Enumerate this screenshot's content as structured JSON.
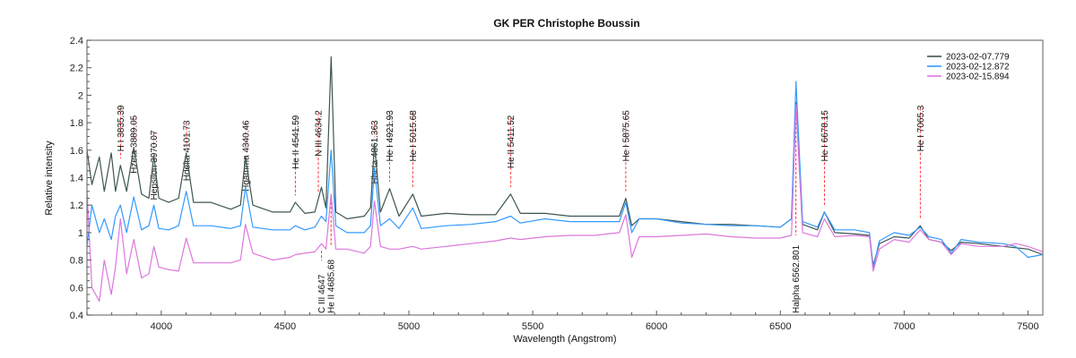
{
  "chart_data": {
    "type": "line",
    "title": "GK PER  Christophe Boussin",
    "xlabel": "Wavelength (Angstrom)",
    "ylabel": "Relative intensity",
    "xlim": [
      3700,
      7560
    ],
    "ylim": [
      0.4,
      2.4
    ],
    "xticks": [
      "4000",
      "4500",
      "5000",
      "5500",
      "6000",
      "6500",
      "7000",
      "7500"
    ],
    "yticks": [
      "0.4",
      "0.6",
      "0.8",
      "1",
      "1.2",
      "1.4",
      "1.6",
      "1.8",
      "2",
      "2.2",
      "2.4"
    ],
    "grid": false,
    "legend_position": "top-right",
    "x": [
      3700,
      3720,
      3750,
      3770,
      3798,
      3815,
      3835,
      3860,
      3889,
      3920,
      3950,
      3970,
      3990,
      4030,
      4070,
      4101,
      4130,
      4200,
      4280,
      4320,
      4340,
      4370,
      4450,
      4520,
      4541,
      4580,
      4620,
      4647,
      4665,
      4686,
      4705,
      4750,
      4820,
      4845,
      4861,
      4885,
      4922,
      4960,
      5016,
      5050,
      5150,
      5250,
      5350,
      5411,
      5450,
      5550,
      5650,
      5750,
      5850,
      5876,
      5900,
      5930,
      6000,
      6100,
      6200,
      6300,
      6400,
      6500,
      6545,
      6563,
      6590,
      6650,
      6678,
      6720,
      6800,
      6860,
      6875,
      6900,
      6960,
      7020,
      7065,
      7100,
      7150,
      7190,
      7230,
      7300,
      7400,
      7450,
      7500,
      7560
    ],
    "series": [
      {
        "name": "2023-02-07.779",
        "color": "#3d5652",
        "values": [
          1.6,
          1.35,
          1.55,
          1.3,
          1.58,
          1.3,
          1.49,
          1.3,
          1.62,
          1.28,
          1.25,
          1.56,
          1.25,
          1.22,
          1.25,
          1.58,
          1.22,
          1.22,
          1.17,
          1.2,
          1.55,
          1.2,
          1.15,
          1.15,
          1.22,
          1.14,
          1.15,
          1.33,
          1.18,
          2.28,
          1.15,
          1.1,
          1.12,
          1.18,
          1.65,
          1.15,
          1.32,
          1.12,
          1.28,
          1.12,
          1.14,
          1.13,
          1.13,
          1.28,
          1.14,
          1.14,
          1.12,
          1.12,
          1.12,
          1.25,
          1.05,
          1.1,
          1.1,
          1.08,
          1.06,
          1.06,
          1.05,
          1.04,
          1.1,
          1.95,
          1.06,
          1.02,
          1.15,
          1.0,
          0.99,
          0.98,
          0.76,
          0.92,
          0.97,
          0.96,
          1.05,
          0.95,
          0.93,
          0.87,
          0.93,
          0.92,
          0.9,
          0.89,
          0.88,
          0.84
        ]
      },
      {
        "name": "2023-02-12.872",
        "color": "#3399ff",
        "values": [
          0.9,
          1.2,
          1.0,
          1.1,
          0.95,
          1.12,
          1.2,
          1.0,
          1.26,
          1.02,
          1.05,
          1.2,
          1.03,
          1.02,
          1.05,
          1.3,
          1.05,
          1.05,
          1.03,
          1.05,
          1.33,
          1.04,
          1.02,
          1.02,
          1.05,
          1.02,
          1.04,
          1.12,
          1.08,
          1.6,
          1.05,
          1.0,
          1.0,
          1.05,
          1.47,
          1.05,
          1.1,
          1.03,
          1.18,
          1.03,
          1.05,
          1.06,
          1.08,
          1.12,
          1.07,
          1.1,
          1.08,
          1.08,
          1.08,
          1.22,
          1.0,
          1.1,
          1.1,
          1.07,
          1.06,
          1.05,
          1.05,
          1.04,
          1.1,
          2.1,
          1.08,
          1.04,
          1.15,
          1.02,
          1.02,
          1.0,
          0.74,
          0.94,
          1.0,
          0.98,
          1.04,
          0.97,
          0.95,
          0.85,
          0.95,
          0.93,
          0.92,
          0.9,
          0.82,
          0.84
        ]
      },
      {
        "name": "2023-02-15.894",
        "color": "#dd77dd",
        "values": [
          1.3,
          0.6,
          0.5,
          0.8,
          0.55,
          0.75,
          1.1,
          0.7,
          0.95,
          0.67,
          0.7,
          0.9,
          0.75,
          0.73,
          0.72,
          0.96,
          0.78,
          0.78,
          0.78,
          0.8,
          1.06,
          0.85,
          0.8,
          0.82,
          0.84,
          0.85,
          0.86,
          0.92,
          0.88,
          1.28,
          0.88,
          0.88,
          0.85,
          0.9,
          1.23,
          0.9,
          0.88,
          0.88,
          0.9,
          0.88,
          0.9,
          0.92,
          0.94,
          0.96,
          0.95,
          0.97,
          0.98,
          0.98,
          1.0,
          1.13,
          0.82,
          0.97,
          0.97,
          0.98,
          0.99,
          0.97,
          0.96,
          0.96,
          0.98,
          1.93,
          1.0,
          0.97,
          1.1,
          0.97,
          0.98,
          0.97,
          0.72,
          0.88,
          0.95,
          0.93,
          1.02,
          0.95,
          0.93,
          0.84,
          0.92,
          0.9,
          0.9,
          0.92,
          0.9,
          0.86
        ]
      }
    ],
    "annotations": [
      {
        "label": "H I 3835.39",
        "x": 3835.39,
        "side": "top"
      },
      {
        "label": "Hzeta 3889.05",
        "x": 3889.05,
        "side": "top"
      },
      {
        "label": "Hepsilon 3970.07",
        "x": 3970.07,
        "side": "top"
      },
      {
        "label": "Hdelta 4101.73",
        "x": 4101.73,
        "side": "top"
      },
      {
        "label": "Hgamma 4340.46",
        "x": 4340.46,
        "side": "top"
      },
      {
        "label": "He II 4541.59",
        "x": 4541.59,
        "side": "top"
      },
      {
        "label": "N III 4634.2",
        "x": 4634.2,
        "side": "top"
      },
      {
        "label": "Hbeta 4861.363",
        "x": 4861.363,
        "side": "top"
      },
      {
        "label": "He I 4921.93",
        "x": 4921.93,
        "side": "top"
      },
      {
        "label": "He I 5015.68",
        "x": 5015.68,
        "side": "top"
      },
      {
        "label": "He II 5411.52",
        "x": 5411.52,
        "side": "top"
      },
      {
        "label": "He I 5875.65",
        "x": 5875.65,
        "side": "top"
      },
      {
        "label": "He I 6678.15",
        "x": 6678.15,
        "side": "top"
      },
      {
        "label": "He I 7065.3",
        "x": 7065.3,
        "side": "top"
      },
      {
        "label": "C III 4647",
        "x": 4647,
        "side": "bottom"
      },
      {
        "label": "He II 4685.68",
        "x": 4685.68,
        "side": "bottom"
      },
      {
        "label": "Halpha 6562.801",
        "x": 6562.801,
        "side": "bottom"
      }
    ],
    "annotation_color": "#ff3333"
  }
}
